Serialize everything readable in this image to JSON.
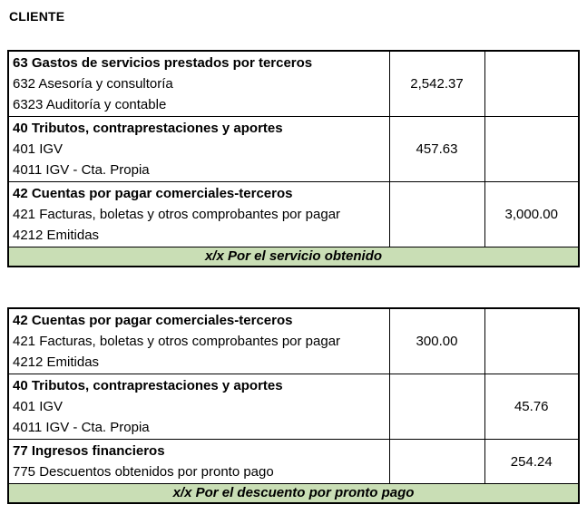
{
  "title": "CLIENTE",
  "colors": {
    "highlight_green": "#c9deb5",
    "border": "#000000",
    "text": "#000000",
    "background": "#ffffff"
  },
  "tables": [
    {
      "rows": [
        {
          "lines": [
            "63 Gastos de servicios prestados por terceros",
            "632 Asesoría y consultoría",
            "6323 Auditoría y contable"
          ],
          "debit": "2,542.37",
          "credit": ""
        },
        {
          "lines": [
            "40 Tributos, contraprestaciones y aportes",
            "401 IGV",
            "4011 IGV - Cta. Propia"
          ],
          "debit": "457.63",
          "credit": ""
        },
        {
          "lines": [
            "42 Cuentas por pagar comerciales-terceros",
            "421 Facturas, boletas y otros comprobantes por pagar",
            "4212 Emitidas"
          ],
          "debit": "",
          "credit": "3,000.00"
        }
      ],
      "footer": "x/x Por el servicio obtenido"
    },
    {
      "rows": [
        {
          "lines": [
            "42 Cuentas por pagar comerciales-terceros",
            "421 Facturas, boletas y otros comprobantes por pagar",
            "4212 Emitidas"
          ],
          "debit": "300.00",
          "credit": ""
        },
        {
          "lines": [
            "40 Tributos, contraprestaciones y aportes",
            "401 IGV",
            "4011 IGV - Cta. Propia"
          ],
          "debit": "",
          "credit": "45.76"
        },
        {
          "lines": [
            "77 Ingresos financieros",
            "775 Descuentos obtenidos por pronto pago"
          ],
          "debit": "",
          "credit": "254.24"
        }
      ],
      "footer": "x/x Por el descuento por pronto pago"
    }
  ]
}
